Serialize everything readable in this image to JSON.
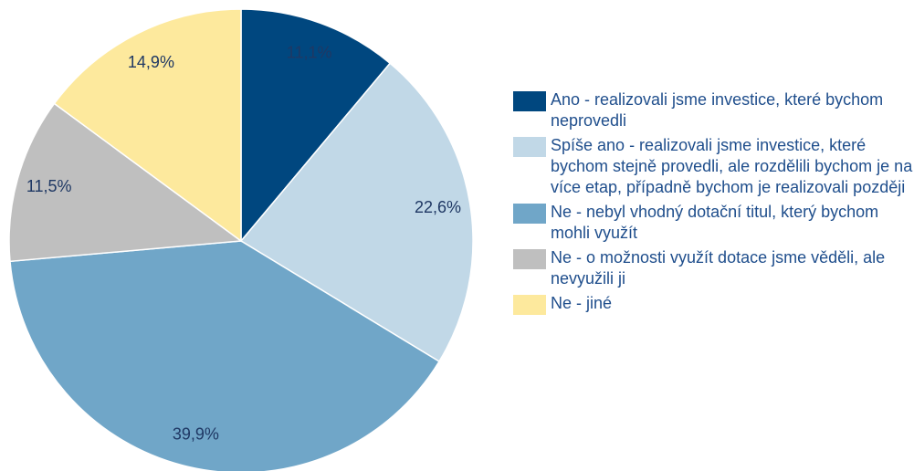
{
  "chart_data": {
    "type": "pie",
    "series": [
      {
        "name": "Ano - realizovali jsme investice, které bychom neprovedli",
        "color": "#00477f"
      },
      {
        "name": "Spíše ano - realizovali jsme investice, které bychom stejně provedli, ale rozdělili bychom je na více etap, případně bychom je realizovali později",
        "color": "#c1d8e7"
      },
      {
        "name": "Ne - nebyl vhodný dotační titul, který bychom mohli využít",
        "color": "#70a6c8"
      },
      {
        "name": "Ne - o možnosti využít dotace jsme věděli, ale nevyužili ji",
        "color": "#bfbfbf"
      },
      {
        "name": "Ne - jiné",
        "color": "#fde99d"
      }
    ],
    "values": [
      11.1,
      22.6,
      39.9,
      11.5,
      14.9
    ],
    "value_labels": [
      "11,1%",
      "22,6%",
      "39,9%",
      "11,5%",
      "14,9%"
    ],
    "legend": "right"
  }
}
